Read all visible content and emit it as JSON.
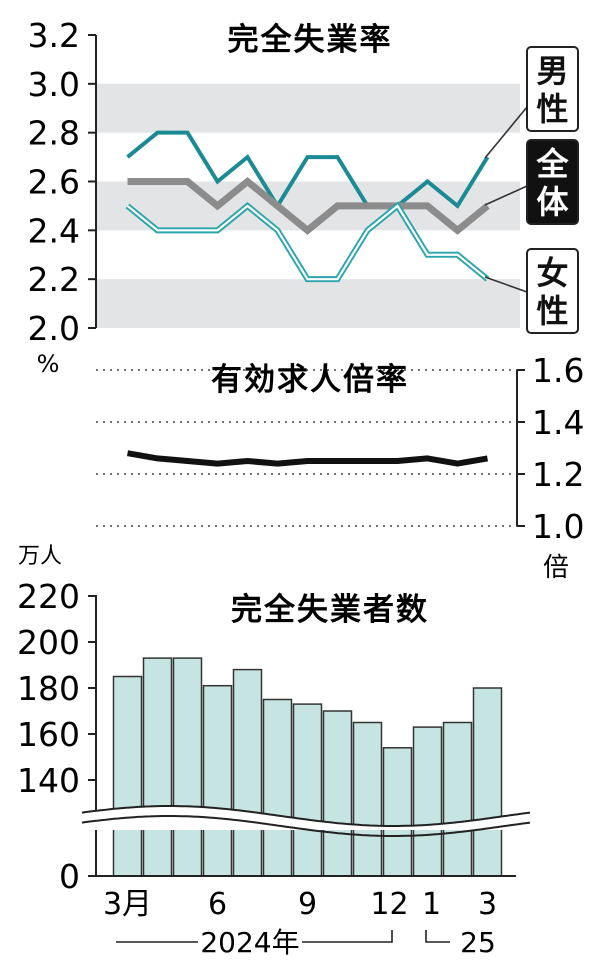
{
  "chart_data": [
    {
      "type": "line",
      "title": "完全失業率",
      "unit_label": "%",
      "ylim": [
        2.0,
        3.2
      ],
      "yticks": [
        "3.2",
        "3.0",
        "2.8",
        "2.6",
        "2.4",
        "2.2",
        "2.0"
      ],
      "shaded_bands": [
        [
          2.8,
          3.0
        ],
        [
          2.4,
          2.6
        ],
        [
          2.0,
          2.2
        ]
      ],
      "x": [
        "2024-03",
        "2024-04",
        "2024-05",
        "2024-06",
        "2024-07",
        "2024-08",
        "2024-09",
        "2024-10",
        "2024-11",
        "2024-12",
        "2025-01",
        "2025-02",
        "2025-03"
      ],
      "series": [
        {
          "name": "男性",
          "name_lines": [
            "男",
            "性"
          ],
          "color": "#1a8b94",
          "style": "solid",
          "values": [
            2.7,
            2.8,
            2.8,
            2.6,
            2.7,
            2.5,
            2.7,
            2.7,
            2.5,
            2.5,
            2.6,
            2.5,
            2.7
          ]
        },
        {
          "name": "全体",
          "name_lines": [
            "全",
            "体"
          ],
          "color": "#8c8c8c",
          "style": "thick",
          "values": [
            2.6,
            2.6,
            2.6,
            2.5,
            2.6,
            2.5,
            2.4,
            2.5,
            2.5,
            2.5,
            2.5,
            2.4,
            2.5
          ]
        },
        {
          "name": "女性",
          "name_lines": [
            "女",
            "性"
          ],
          "color": "#2aa5ad",
          "style": "double",
          "values": [
            2.5,
            2.4,
            2.4,
            2.4,
            2.5,
            2.4,
            2.2,
            2.2,
            2.4,
            2.5,
            2.3,
            2.3,
            2.2
          ]
        }
      ]
    },
    {
      "type": "line",
      "title": "有効求人倍率",
      "unit_label": "倍",
      "ylim": [
        1.0,
        1.6
      ],
      "yticks": [
        "1.6",
        "1.4",
        "1.2",
        "1.0"
      ],
      "x": [
        "2024-03",
        "2024-04",
        "2024-05",
        "2024-06",
        "2024-07",
        "2024-08",
        "2024-09",
        "2024-10",
        "2024-11",
        "2024-12",
        "2025-01",
        "2025-02",
        "2025-03"
      ],
      "series": [
        {
          "name": "",
          "color": "#111111",
          "values": [
            1.28,
            1.26,
            1.25,
            1.24,
            1.25,
            1.24,
            1.25,
            1.25,
            1.25,
            1.25,
            1.26,
            1.24,
            1.26
          ]
        }
      ]
    },
    {
      "type": "bar",
      "title": "完全失業者数",
      "unit_label": "万人",
      "ylim": [
        120,
        220
      ],
      "yticks": [
        "220",
        "200",
        "180",
        "160",
        "140",
        "0"
      ],
      "axis_break": true,
      "bar_color": "#c5e4e2",
      "categories": [
        "2024-03",
        "2024-04",
        "2024-05",
        "2024-06",
        "2024-07",
        "2024-08",
        "2024-09",
        "2024-10",
        "2024-11",
        "2024-12",
        "2025-01",
        "2025-02",
        "2025-03"
      ],
      "values": [
        185,
        193,
        193,
        181,
        188,
        175,
        173,
        170,
        165,
        154,
        163,
        165,
        180
      ]
    }
  ],
  "x_axis": {
    "tick_labels": [
      "3月",
      "6",
      "9",
      "12",
      "1",
      "3"
    ],
    "year_labels": [
      "2024年",
      "25"
    ]
  }
}
